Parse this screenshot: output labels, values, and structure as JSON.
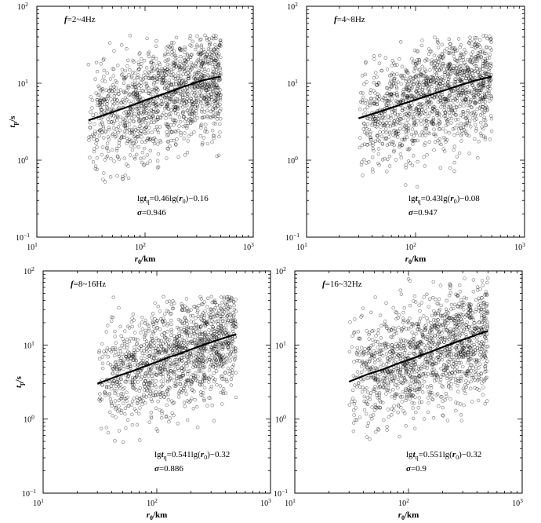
{
  "chart_data": [
    {
      "type": "scatter",
      "title": "f=2~4Hz",
      "xlabel": "r0/km",
      "ylabel": "tp/s",
      "xscale": "log",
      "yscale": "log",
      "xlim": [
        10,
        1000
      ],
      "ylim": [
        0.1,
        100
      ],
      "xticks": [
        "10^1",
        "10^2",
        "10^3"
      ],
      "yticks": [
        "10^-1",
        "10^0",
        "10^1",
        "10^2"
      ],
      "fit": {
        "x": [
          30,
          500
        ],
        "y": [
          3.3,
          12.2
        ]
      },
      "equation": "lgtq=0.46lg(r0)−0.16",
      "sigma": "σ=0.946",
      "scatter": {
        "x_range": [
          30,
          500
        ],
        "y_spread_decades": 0.36,
        "y_min": 0.45,
        "y_max": 42,
        "seed": 11
      },
      "series": [
        {
          "x": [
            30,
            45,
            60,
            80,
            100,
            130,
            150,
            180,
            220,
            260,
            300,
            350,
            420,
            500
          ],
          "y": [
            3.3,
            4.0,
            4.6,
            5.3,
            6.0,
            6.8,
            7.3,
            8.0,
            8.9,
            9.6,
            10.3,
            11.0,
            11.6,
            12.2
          ]
        }
      ]
    },
    {
      "type": "scatter",
      "title": "f=4~8Hz",
      "xlabel": "r0/km",
      "ylabel": "",
      "xscale": "log",
      "yscale": "log",
      "xlim": [
        10,
        1000
      ],
      "ylim": [
        0.1,
        100
      ],
      "xticks": [
        "10^1",
        "10^2",
        "10^3"
      ],
      "yticks": [
        "10^-1",
        "10^0",
        "10^1",
        "10^2"
      ],
      "fit": {
        "x": [
          30,
          500
        ],
        "y": [
          3.5,
          12.2
        ]
      },
      "equation": "lgtq=0.43lg(r0)−0.08",
      "sigma": "σ=0.947",
      "scatter": {
        "x_range": [
          30,
          500
        ],
        "y_spread_decades": 0.36,
        "y_min": 0.45,
        "y_max": 42,
        "seed": 23
      },
      "series": [
        {
          "x": [
            30,
            45,
            60,
            80,
            100,
            130,
            150,
            180,
            220,
            260,
            300,
            350,
            420,
            500
          ],
          "y": [
            3.5,
            4.2,
            4.8,
            5.5,
            6.1,
            6.9,
            7.4,
            8.0,
            8.8,
            9.5,
            10.1,
            10.8,
            11.5,
            12.2
          ]
        }
      ]
    },
    {
      "type": "scatter",
      "title": "f=8~16Hz",
      "xlabel": "r0/km",
      "ylabel": "tp/s",
      "xscale": "log",
      "yscale": "log",
      "xlim": [
        10,
        1000
      ],
      "ylim": [
        0.1,
        100
      ],
      "xticks": [
        "10^1",
        "10^2",
        "10^3"
      ],
      "yticks": [
        "10^-1",
        "10^0",
        "10^1",
        "10^2"
      ],
      "fit": {
        "x": [
          30,
          500
        ],
        "y": [
          3.0,
          14.0
        ]
      },
      "equation": "lgtq=0.541lg(r0)−0.32",
      "sigma": "σ=0.886",
      "scatter": {
        "x_range": [
          30,
          500
        ],
        "y_spread_decades": 0.36,
        "y_min": 0.4,
        "y_max": 45,
        "seed": 37
      },
      "series": [
        {
          "x": [
            30,
            45,
            60,
            80,
            100,
            130,
            150,
            180,
            220,
            260,
            300,
            350,
            420,
            500
          ],
          "y": [
            3.0,
            3.8,
            4.4,
            5.2,
            5.9,
            6.9,
            7.4,
            8.2,
            9.2,
            10.1,
            10.9,
            11.8,
            12.9,
            14.0
          ]
        }
      ]
    },
    {
      "type": "scatter",
      "title": "f=16~32Hz",
      "xlabel": "r0/km",
      "ylabel": "",
      "xscale": "log",
      "yscale": "log",
      "xlim": [
        10,
        1000
      ],
      "ylim": [
        0.1,
        100
      ],
      "xticks": [
        "10^1",
        "10^2",
        "10^3"
      ],
      "yticks": [
        "10^-1",
        "10^0",
        "10^1",
        "10^2"
      ],
      "fit": {
        "x": [
          30,
          500
        ],
        "y": [
          3.2,
          15.5
        ]
      },
      "equation": "lgtq=0.551lg(r0)−0.32",
      "sigma": "σ=0.9",
      "scatter": {
        "x_range": [
          30,
          500
        ],
        "y_spread_decades": 0.38,
        "y_min": 0.5,
        "y_max": 80,
        "seed": 53
      },
      "series": [
        {
          "x": [
            30,
            45,
            60,
            80,
            100,
            130,
            150,
            180,
            220,
            260,
            300,
            350,
            420,
            500
          ],
          "y": [
            3.2,
            4.1,
            4.7,
            5.6,
            6.3,
            7.3,
            7.9,
            8.8,
            9.9,
            10.9,
            11.8,
            12.8,
            14.2,
            15.5
          ]
        }
      ]
    }
  ]
}
